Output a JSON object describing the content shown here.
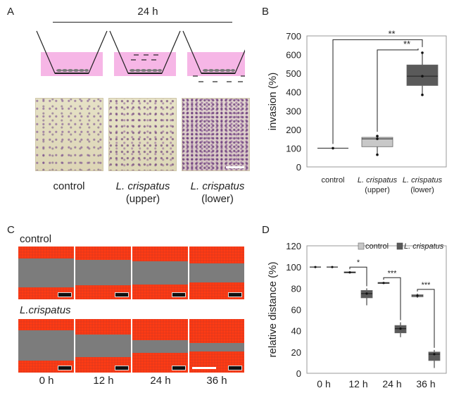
{
  "panels": {
    "a": "A",
    "b": "B",
    "c": "C",
    "d": "D"
  },
  "panelA": {
    "time_label": "24 h",
    "groups": [
      {
        "line1": "control",
        "line2": ""
      },
      {
        "line1": "L. crispatus",
        "line2": "(upper)"
      },
      {
        "line1": "L. crispatus",
        "line2": "(lower)"
      }
    ]
  },
  "panelC": {
    "row_labels": [
      "control",
      "L.crispatus"
    ],
    "time_labels": [
      "0 h",
      "12 h",
      "24 h",
      "36 h"
    ]
  },
  "colors": {
    "pink": "#f6b6e6",
    "light_box": "#c8c8c8",
    "dark_box": "#5a5a5a",
    "scratch_red": "#e8391a",
    "scratch_gray": "#7c7c7c"
  },
  "chart_data": [
    {
      "type": "box",
      "ylabel": "invasion (%)",
      "ylim": [
        0,
        700
      ],
      "yticks": [
        0,
        100,
        200,
        300,
        400,
        500,
        600,
        700
      ],
      "categories": [
        {
          "line1": "control",
          "line2": ""
        },
        {
          "line1": "L. crispatus",
          "line2": "(upper)"
        },
        {
          "line1": "L. crispatus",
          "line2": "(lower)"
        }
      ],
      "boxes": [
        {
          "min": 100,
          "q1": 100,
          "median": 100,
          "q3": 100,
          "max": 100,
          "points": [
            100
          ],
          "color": "light"
        },
        {
          "min": 65,
          "q1": 108,
          "median": 150,
          "q3": 158,
          "max": 165,
          "points": [
            65,
            150,
            165
          ],
          "color": "light"
        },
        {
          "min": 385,
          "q1": 435,
          "median": 485,
          "q3": 545,
          "max": 610,
          "points": [
            385,
            485,
            610
          ],
          "color": "dark"
        }
      ],
      "significance": [
        {
          "from": 0,
          "to": 2,
          "label": "**"
        },
        {
          "from": 1,
          "to": 2,
          "label": "**"
        }
      ]
    },
    {
      "type": "box",
      "ylabel": "relative distance (%)",
      "ylim": [
        0,
        120
      ],
      "yticks": [
        0,
        20,
        40,
        60,
        80,
        100,
        120
      ],
      "categories": [
        "0 h",
        "12 h",
        "24 h",
        "36 h"
      ],
      "series": [
        {
          "name": "control",
          "color": "light",
          "boxes": [
            {
              "min": 100,
              "q1": 100,
              "median": 100,
              "q3": 100,
              "max": 100
            },
            {
              "min": 94,
              "q1": 94.5,
              "median": 95,
              "q3": 95.5,
              "max": 96
            },
            {
              "min": 84,
              "q1": 84.5,
              "median": 85,
              "q3": 85.5,
              "max": 86
            },
            {
              "min": 71,
              "q1": 72,
              "median": 73,
              "q3": 74,
              "max": 75
            }
          ]
        },
        {
          "name": "L. crispatus",
          "color": "dark",
          "boxes": [
            {
              "min": 100,
              "q1": 100,
              "median": 100,
              "q3": 100,
              "max": 100
            },
            {
              "min": 64,
              "q1": 71,
              "median": 75,
              "q3": 78,
              "max": 80
            },
            {
              "min": 34,
              "q1": 38,
              "median": 42,
              "q3": 45,
              "max": 48
            },
            {
              "min": 5,
              "q1": 12,
              "median": 18,
              "q3": 20,
              "max": 22
            }
          ]
        }
      ],
      "significance": [
        {
          "group": 1,
          "label": "*"
        },
        {
          "group": 2,
          "label": "***"
        },
        {
          "group": 3,
          "label": "***"
        }
      ]
    }
  ]
}
